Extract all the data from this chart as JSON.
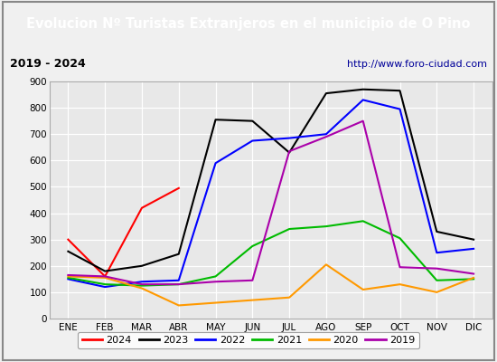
{
  "title": "Evolucion Nº Turistas Extranjeros en el municipio de O Pino",
  "subtitle_left": "2019 - 2024",
  "subtitle_right": "http://www.foro-ciudad.com",
  "months": [
    "ENE",
    "FEB",
    "MAR",
    "ABR",
    "MAY",
    "JUN",
    "JUL",
    "AGO",
    "SEP",
    "OCT",
    "NOV",
    "DIC"
  ],
  "series": {
    "2024": [
      300,
      160,
      420,
      495,
      null,
      null,
      null,
      null,
      null,
      null,
      null,
      null
    ],
    "2023": [
      255,
      180,
      200,
      245,
      755,
      750,
      630,
      855,
      870,
      865,
      330,
      300
    ],
    "2022": [
      150,
      120,
      140,
      145,
      590,
      675,
      685,
      700,
      830,
      795,
      250,
      265
    ],
    "2021": [
      155,
      130,
      125,
      130,
      160,
      275,
      340,
      350,
      370,
      305,
      145,
      150
    ],
    "2020": [
      160,
      155,
      115,
      50,
      60,
      70,
      80,
      205,
      110,
      130,
      100,
      155
    ],
    "2019": [
      165,
      160,
      130,
      130,
      140,
      145,
      635,
      690,
      750,
      195,
      190,
      170
    ]
  },
  "colors": {
    "2024": "#ff0000",
    "2023": "#000000",
    "2022": "#0000ff",
    "2021": "#00bb00",
    "2020": "#ff9900",
    "2019": "#aa00aa"
  },
  "ylim": [
    0,
    900
  ],
  "yticks": [
    0,
    100,
    200,
    300,
    400,
    500,
    600,
    700,
    800,
    900
  ],
  "title_bg_color": "#4499cc",
  "title_text_color": "#ffffff",
  "plot_bg_color": "#e8e8e8",
  "header_bg_color": "#f0f0f0",
  "grid_color": "#ffffff",
  "outer_bg": "#f0f0f0"
}
